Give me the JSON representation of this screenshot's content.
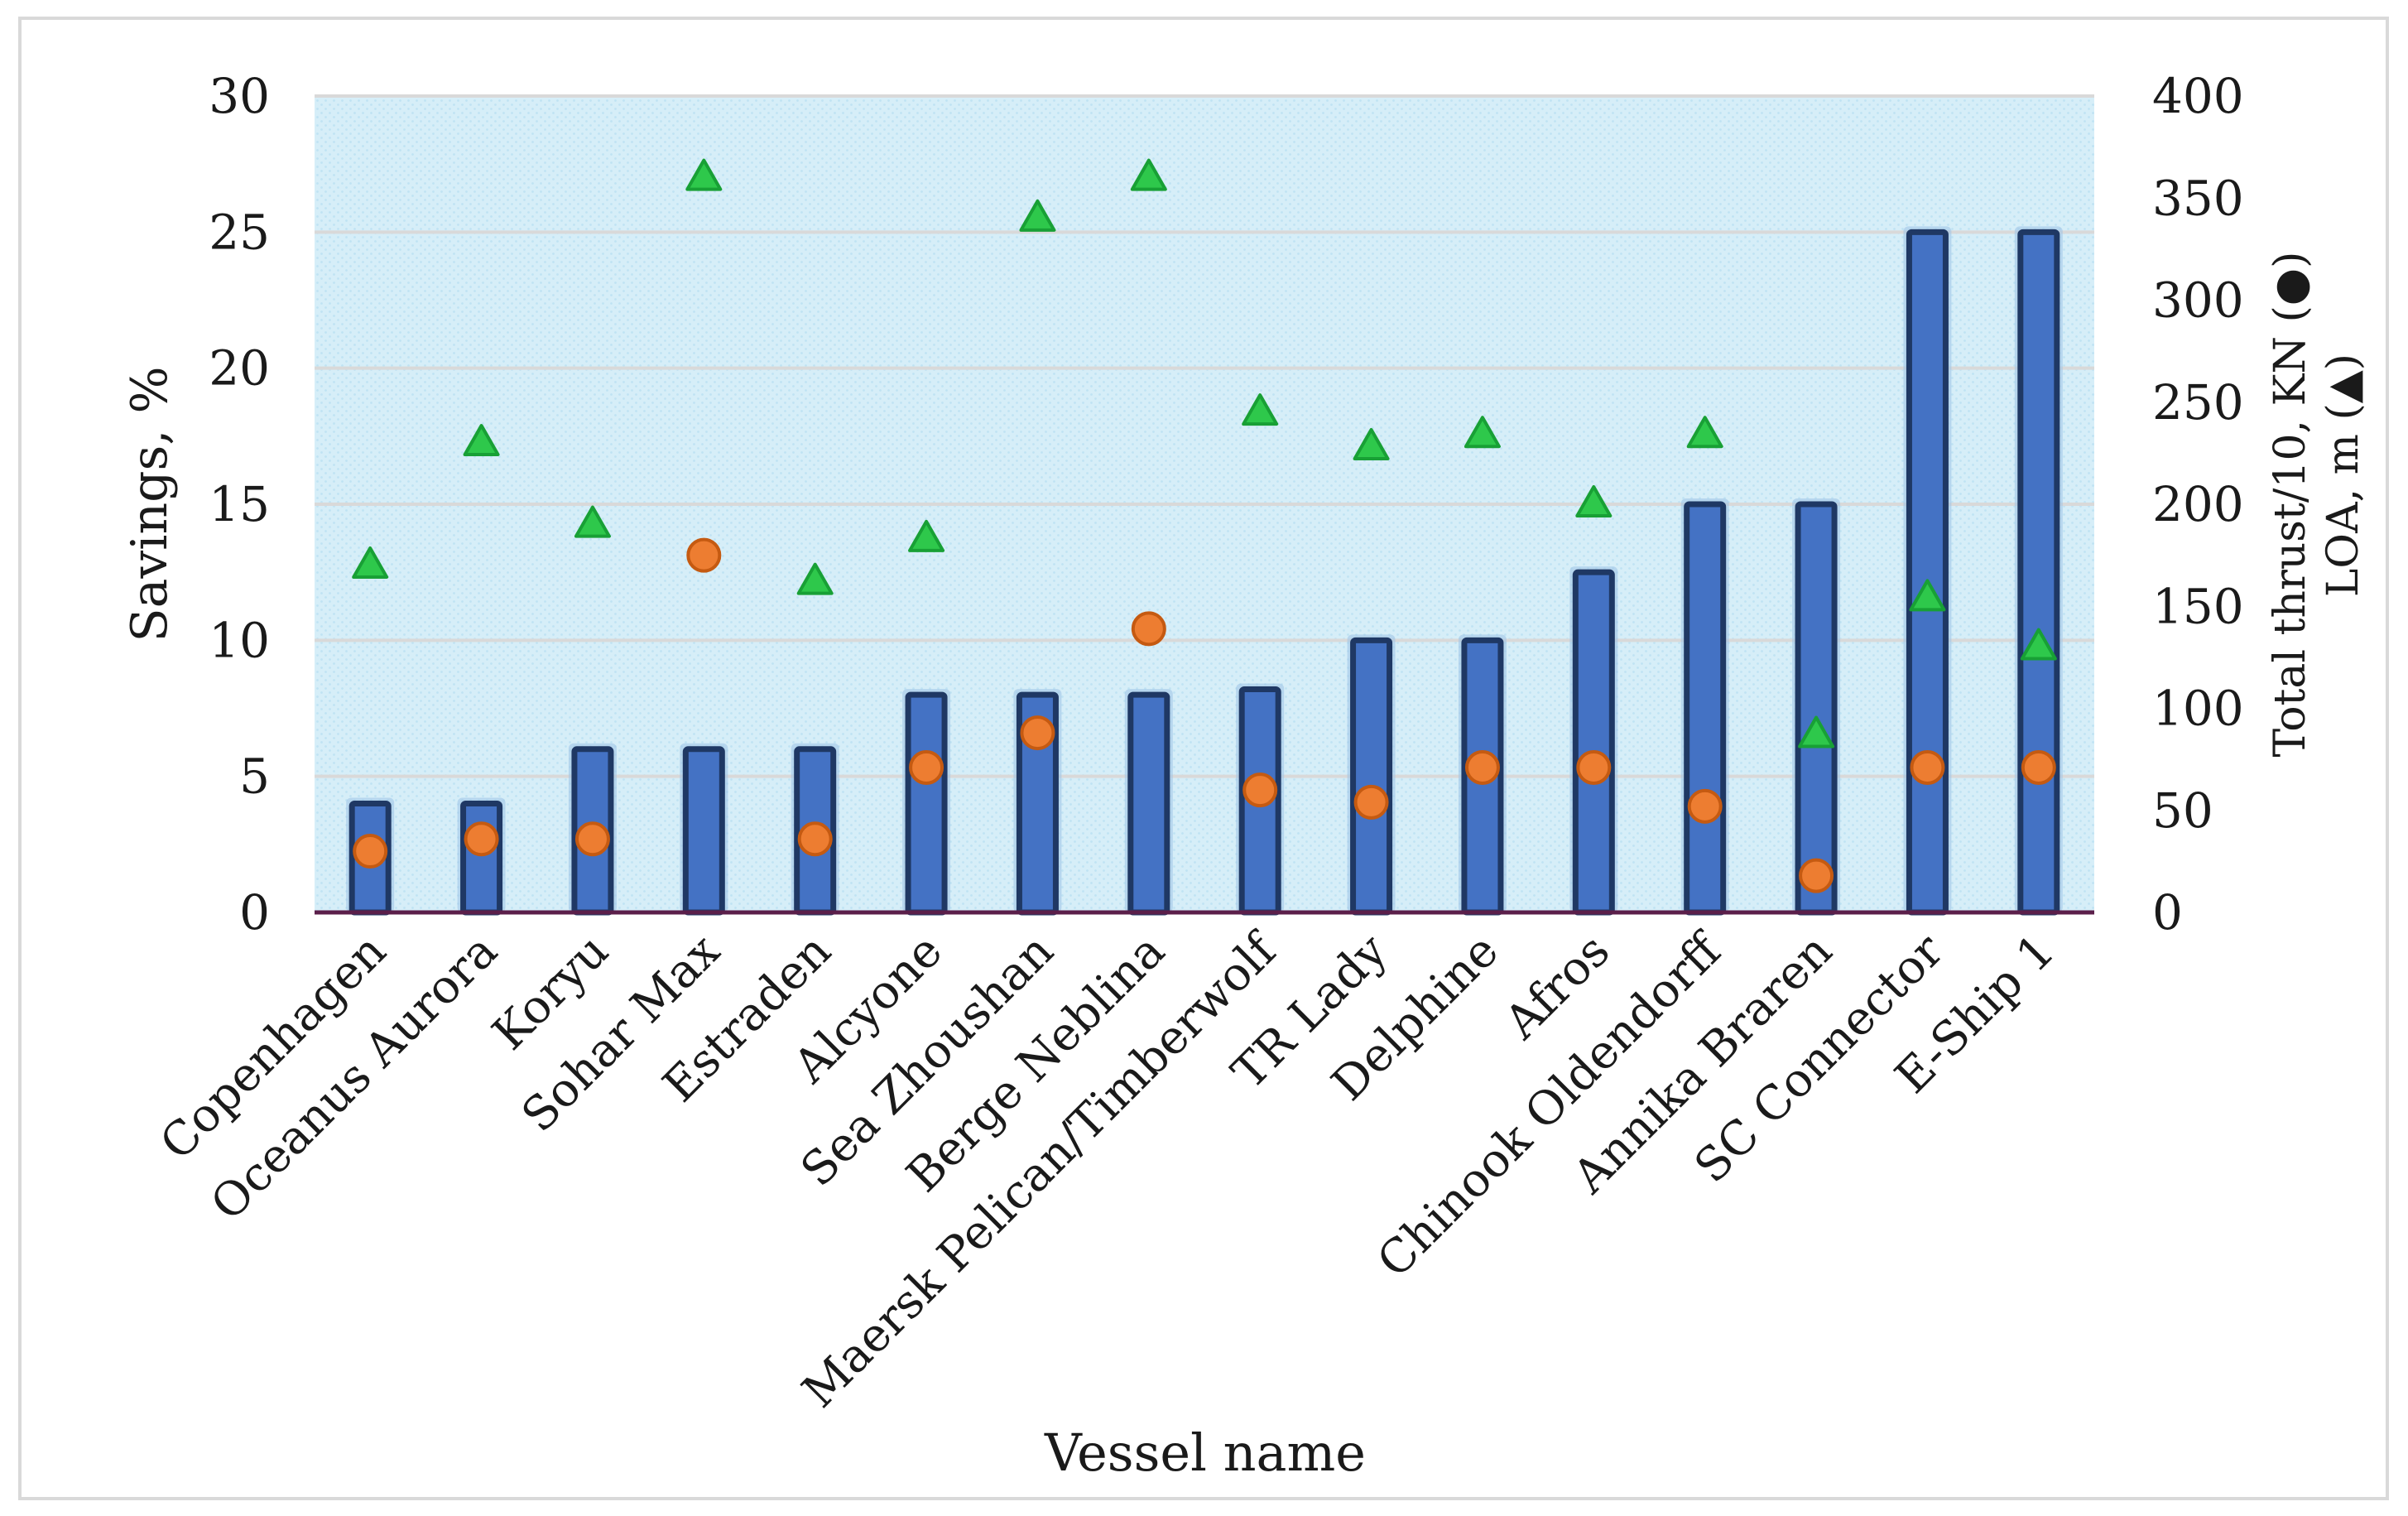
{
  "chart_data": {
    "type": "bar",
    "title": "",
    "xlabel": "Vessel name",
    "ylabel": "Savings, %",
    "y2label_line1": "Total thrust/10, KN (●)",
    "y2label_line2": "LOA, m (▲)",
    "ylim": [
      0,
      30
    ],
    "y2lim": [
      0,
      400
    ],
    "yticks": [
      "0",
      "5",
      "10",
      "15",
      "20",
      "25",
      "30"
    ],
    "y2ticks": [
      "0",
      "50",
      "100",
      "150",
      "200",
      "250",
      "300",
      "350",
      "400"
    ],
    "categories": [
      "Copenhagen",
      "Oceanus Aurora",
      "Koryu",
      "Sohar Max",
      "Estraden",
      "Alcyone",
      "Sea Zhoushan",
      "Berge Neblina",
      "Maersk Pelican/Timberwolf",
      "TR Lady",
      "Delphine",
      "Afros",
      "Chinook Oldendorff",
      "Annika Braren",
      "SC Connector",
      "E-Ship 1"
    ],
    "series": [
      {
        "name": "Savings, %",
        "kind": "bar",
        "axis": "left",
        "values": [
          4,
          4,
          6,
          6,
          6,
          8,
          8,
          8,
          8.2,
          10,
          10,
          12.5,
          15,
          15,
          25,
          25
        ]
      },
      {
        "name": "Total thrust/10, KN",
        "kind": "circle",
        "axis": "right",
        "values": [
          30,
          36,
          36,
          175,
          36,
          71,
          88,
          139,
          60,
          54,
          71,
          71,
          52,
          18,
          71,
          71
        ]
      },
      {
        "name": "LOA, m",
        "kind": "triangle",
        "axis": "right",
        "values": [
          170,
          230,
          190,
          360,
          162,
          183,
          340,
          360,
          245,
          228,
          234,
          200,
          234,
          87,
          154,
          130
        ]
      }
    ],
    "colors": {
      "bar_fill": "#4472c4",
      "bar_border": "#1f3864",
      "bar_glow": "#9cc3e6",
      "circle_fill": "#ed7d31",
      "circle_stroke": "#c55a11",
      "triangle_fill": "#2ec84b",
      "triangle_stroke": "#18a035",
      "plot_bg": "#d6eef8",
      "grid": "#d9d9d9",
      "baseline": "#5b1f4a"
    }
  }
}
